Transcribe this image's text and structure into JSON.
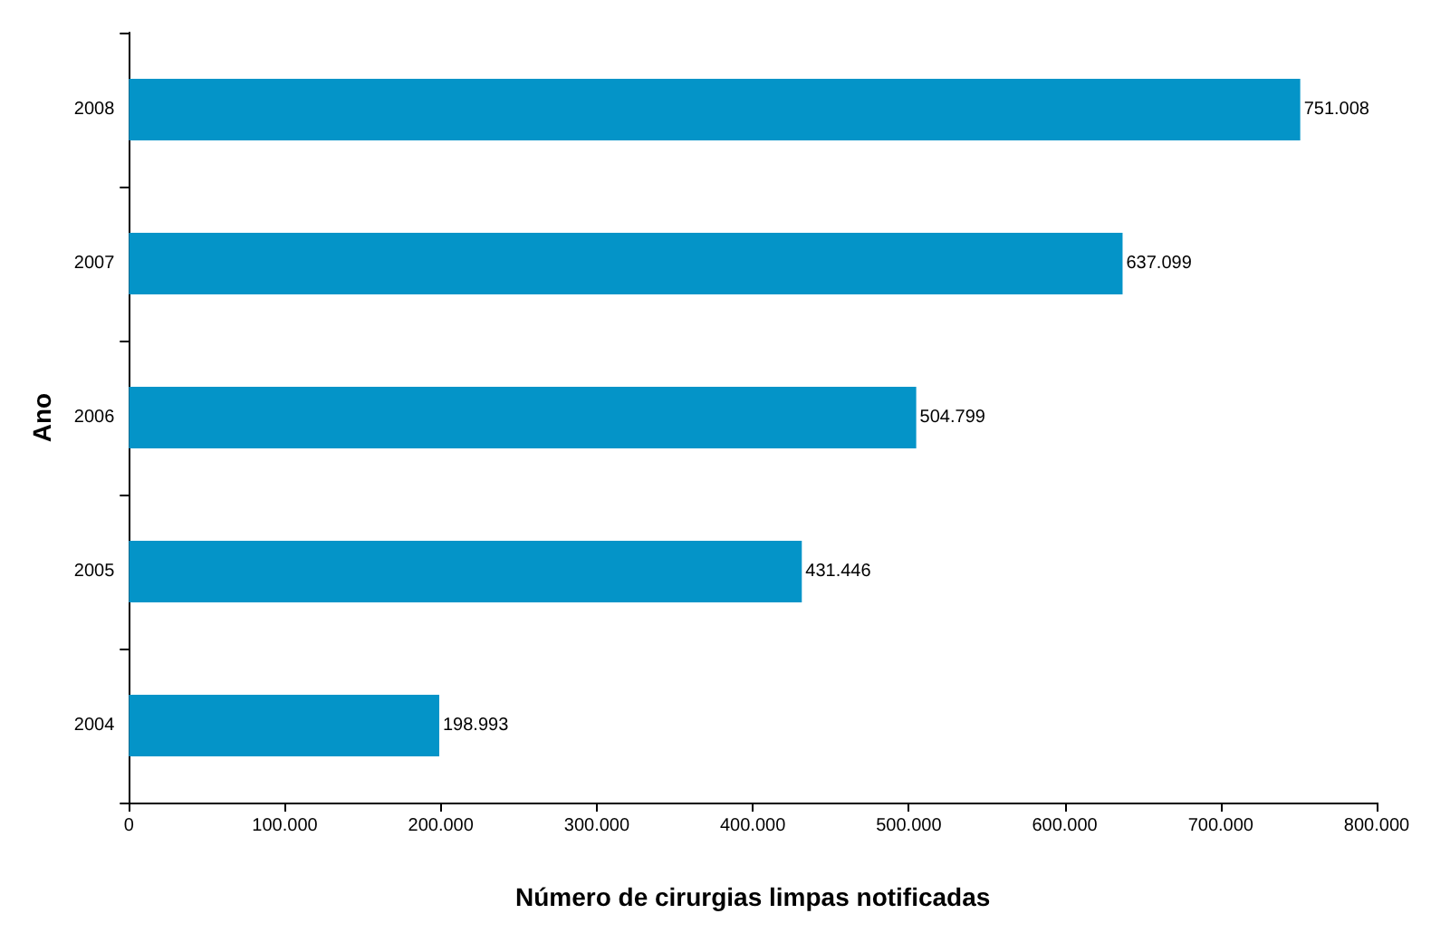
{
  "chart_data": {
    "type": "bar",
    "orientation": "horizontal",
    "xlabel": "Número de cirurgias limpas notificadas",
    "ylabel": "Ano",
    "categories": [
      "2008",
      "2007",
      "2006",
      "2005",
      "2004"
    ],
    "values": [
      751008,
      637099,
      504799,
      431446,
      198993
    ],
    "value_labels": [
      "751.008",
      "637.099",
      "504.799",
      "431.446",
      "198.993"
    ],
    "color": "#0494c8",
    "xlim": [
      0,
      800000
    ],
    "xticks": [
      0,
      {
        "value": 100000,
        "label": "100.000"
      },
      {
        "value": 200000,
        "label": "200.000"
      },
      {
        "value": 300000,
        "label": "300.000"
      },
      {
        "value": 400000,
        "label": "400.000"
      },
      {
        "value": 500000,
        "label": "500.000"
      },
      {
        "value": 600000,
        "label": "600.000"
      },
      {
        "value": 700000,
        "label": "700.000"
      },
      {
        "value": 800000,
        "label": "800.000"
      }
    ],
    "grid": false
  }
}
